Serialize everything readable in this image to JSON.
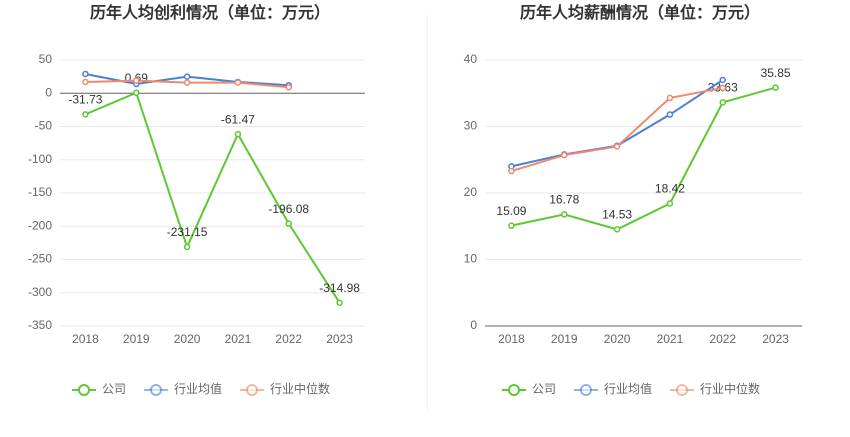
{
  "chart_data": [
    {
      "type": "line",
      "title": "历年人均创利情况（单位：万元）",
      "categories": [
        "2018",
        "2019",
        "2020",
        "2021",
        "2022",
        "2023"
      ],
      "series": [
        {
          "name": "公司",
          "color": "#5dc832",
          "values": [
            -31.73,
            0.69,
            -231.15,
            -61.47,
            -196.08,
            -314.98
          ]
        },
        {
          "name": "行业均值",
          "color": "#4a7fd6",
          "values": [
            29,
            14,
            25,
            17,
            12,
            null
          ]
        },
        {
          "name": "行业中位数",
          "color": "#f0896a",
          "values": [
            17,
            19,
            16,
            16,
            9,
            null
          ]
        }
      ],
      "ylim": [
        -350,
        50
      ],
      "yticks": [
        50,
        0,
        -50,
        -100,
        -150,
        -200,
        -250,
        -300,
        -350
      ],
      "grid": true,
      "legend": "bottom"
    },
    {
      "type": "line",
      "title": "历年人均薪酬情况（单位：万元）",
      "categories": [
        "2018",
        "2019",
        "2020",
        "2021",
        "2022",
        "2023"
      ],
      "series": [
        {
          "name": "公司",
          "color": "#5dc832",
          "values": [
            15.09,
            16.78,
            14.53,
            18.42,
            33.63,
            35.85
          ]
        },
        {
          "name": "行业均值",
          "color": "#4a7fd6",
          "values": [
            24,
            25.8,
            27.1,
            31.8,
            37.0,
            null
          ]
        },
        {
          "name": "行业中位数",
          "color": "#f0896a",
          "values": [
            23.3,
            25.7,
            27.0,
            34.3,
            35.8,
            null
          ]
        }
      ],
      "ylim": [
        0,
        40
      ],
      "yticks": [
        0,
        10,
        20,
        30,
        40
      ],
      "grid": true,
      "legend": "bottom"
    }
  ]
}
